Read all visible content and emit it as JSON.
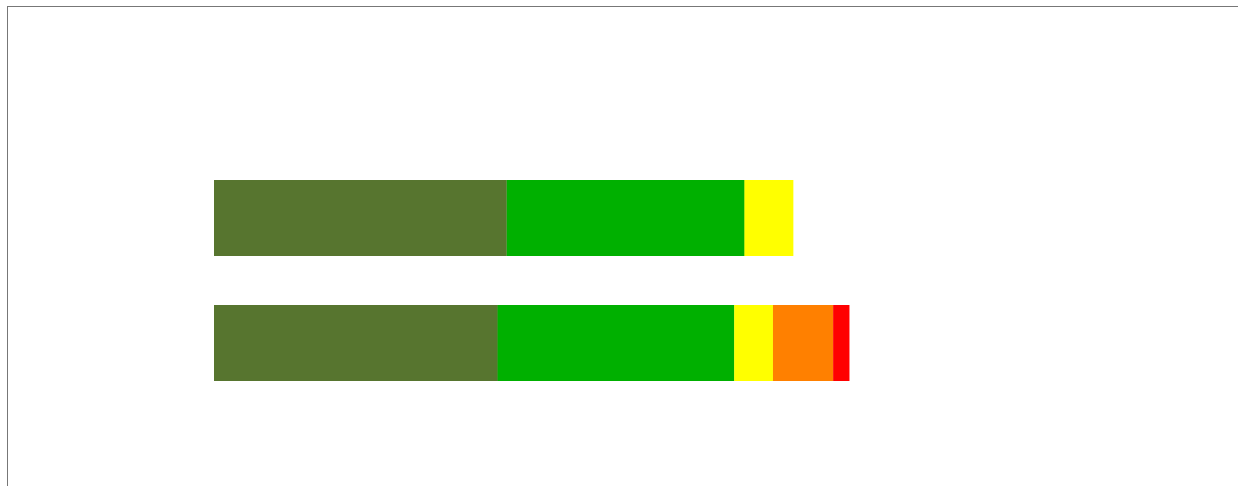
{
  "chart_data": {
    "type": "bar",
    "orientation": "horizontal",
    "stacked": true,
    "title": "",
    "xlabel": "",
    "ylabel": "",
    "grid": false,
    "legend": "none",
    "xlim": [
      0,
      1
    ],
    "categories": [
      "",
      ""
    ],
    "series": [
      {
        "color": "#57752f",
        "values": [
          0.287,
          0.278
        ]
      },
      {
        "color": "#00b000",
        "values": [
          0.233,
          0.232
        ]
      },
      {
        "color": "#ffff00",
        "values": [
          0.048,
          0.038
        ]
      },
      {
        "color": "#ff8000",
        "values": [
          0.0,
          0.059
        ]
      },
      {
        "color": "#ff0000",
        "values": [
          0.0,
          0.016
        ]
      }
    ]
  }
}
